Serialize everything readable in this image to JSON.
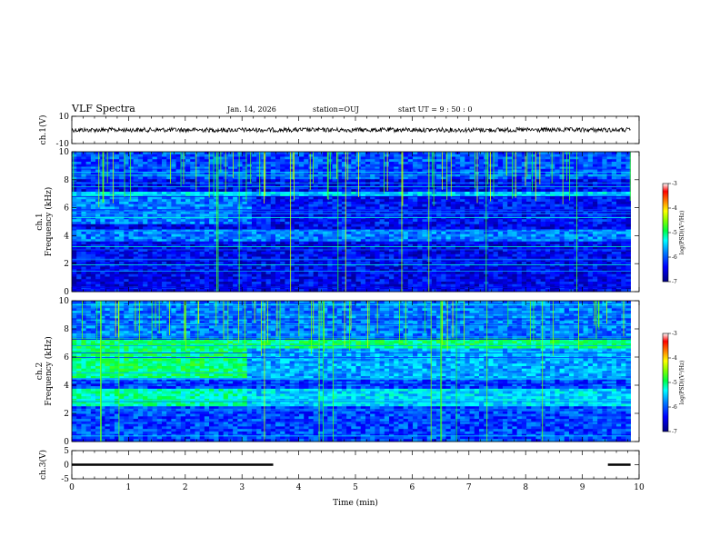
{
  "header": {
    "title": "VLF Spectra",
    "date": "Jan. 14, 2026",
    "station": "station=OUJ",
    "start": "start  UT =   9 : 50 : 0"
  },
  "chart_data": [
    {
      "type": "line",
      "ylabel": "ch.1(V)",
      "ylim": [
        -10,
        10
      ],
      "yticks": [
        "10",
        "-10"
      ],
      "xlim": [
        0,
        10
      ],
      "level": 0,
      "xmax_data": 9.85
    },
    {
      "type": "heatmap",
      "ylabel": "ch.1\nFrequency (kHz)",
      "ylim": [
        0,
        10
      ],
      "yticks": [
        "0",
        "2",
        "4",
        "6",
        "8",
        "10"
      ],
      "xlim": [
        0,
        10
      ],
      "xmax_data": 9.85,
      "colorbar": {
        "label": "log(PSD)(V²/Hz)",
        "range": [
          -7,
          -3
        ],
        "ticks": [
          "-3",
          "-4",
          "-5",
          "-6",
          "-7"
        ]
      }
    },
    {
      "type": "heatmap",
      "ylabel": "ch.2\nFrequency (kHz)",
      "ylim": [
        0,
        10
      ],
      "yticks": [
        "0",
        "2",
        "4",
        "6",
        "8",
        "10"
      ],
      "xlim": [
        0,
        10
      ],
      "xmax_data": 9.85,
      "colorbar": {
        "label": "log(PSD)(V²/Hz)",
        "range": [
          -7,
          -3
        ],
        "ticks": [
          "-3",
          "-4",
          "-5",
          "-6",
          "-7"
        ]
      }
    },
    {
      "type": "line",
      "ylabel": "ch.3(V)",
      "ylim": [
        -5,
        5
      ],
      "yticks": [
        "5",
        "0",
        "-5"
      ],
      "xlim": [
        0,
        10
      ],
      "segments": [
        {
          "x": [
            0,
            3.55
          ],
          "y": 0
        },
        {
          "x": [
            9.45,
            9.85
          ],
          "y": 0
        }
      ],
      "xlabel": "Time (min)",
      "xticks": [
        "0",
        "1",
        "2",
        "3",
        "4",
        "5",
        "6",
        "7",
        "8",
        "9",
        "10"
      ]
    }
  ],
  "colors": {
    "ink": "#000000",
    "cmap": [
      "#000080",
      "#0000ff",
      "#0080ff",
      "#00ffff",
      "#00ff40",
      "#80ff00",
      "#ffff00",
      "#ff8000",
      "#ff0000",
      "#ffffff"
    ]
  }
}
